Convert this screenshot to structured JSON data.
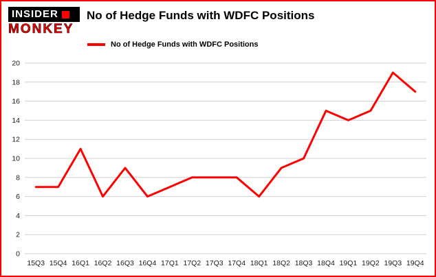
{
  "logo": {
    "line1": "INSIDER",
    "line2": "MONKEY"
  },
  "header": {
    "title": "No of Hedge Funds with WDFC Positions"
  },
  "legend": {
    "label": "No of Hedge Funds with WDFC Positions",
    "color": "#ff0000"
  },
  "colors": {
    "accent": "#ff0000",
    "frame_border": "#ff0000",
    "grid": "#cfcfcf",
    "logo_black": "#000000"
  },
  "chart_data": {
    "type": "line",
    "title": "No of Hedge Funds with WDFC Positions",
    "categories": [
      "15Q3",
      "15Q4",
      "16Q1",
      "16Q2",
      "16Q3",
      "16Q4",
      "17Q1",
      "17Q2",
      "17Q3",
      "17Q4",
      "18Q1",
      "18Q2",
      "18Q3",
      "18Q4",
      "19Q1",
      "19Q2",
      "19Q3",
      "19Q4"
    ],
    "values": [
      7,
      7,
      11,
      6,
      9,
      6,
      7,
      8,
      8,
      8,
      6,
      9,
      10,
      15,
      14,
      15,
      19,
      17
    ],
    "series_name": "No of Hedge Funds with WDFC Positions",
    "xlabel": "",
    "ylabel": "",
    "ylim": [
      0,
      20
    ],
    "ytick_step": 2,
    "grid": true,
    "legend_position": "top-left",
    "line_color": "#ff0000",
    "line_width": 3
  }
}
